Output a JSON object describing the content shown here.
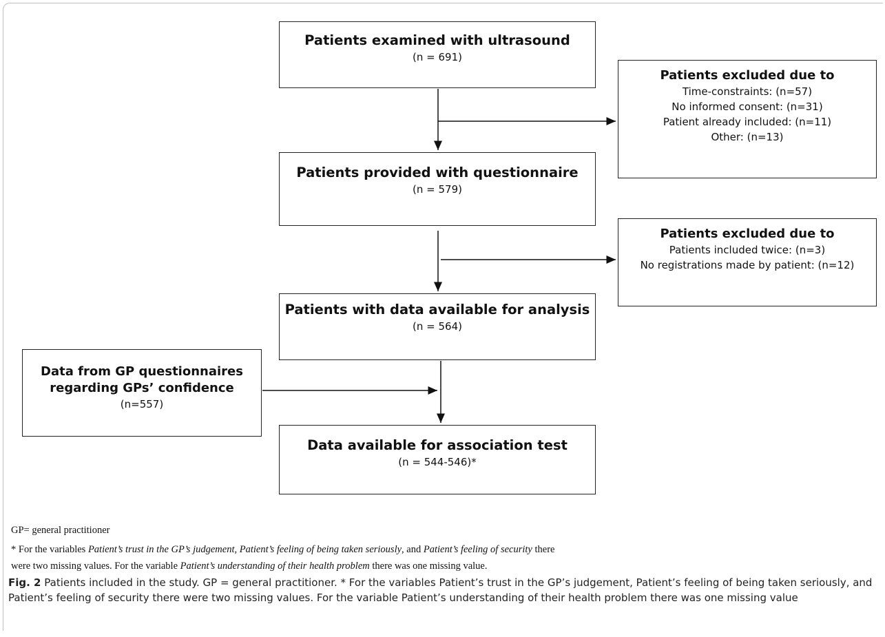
{
  "boxes": {
    "examined": {
      "title": "Patients examined with ultrasound",
      "count": "(n = 691)"
    },
    "provided": {
      "title": "Patients provided with questionnaire",
      "count": "(n = 579)"
    },
    "available": {
      "title": "Patients with data available for analysis",
      "count": "(n = 564)"
    },
    "association": {
      "title": "Data available for association test",
      "count": "(n = 544-546)*"
    },
    "excluded1": {
      "title": "Patients excluded due to",
      "lines": [
        "Time-constraints: (n=57)",
        "No informed consent: (n=31)",
        "Patient already included: (n=11)",
        "Other: (n=13)"
      ]
    },
    "excluded2": {
      "title": "Patients excluded due to",
      "lines": [
        "Patients included twice: (n=3)",
        "No registrations made by patient: (n=12)"
      ]
    },
    "gp": {
      "title_line1": "Data from GP questionnaires",
      "title_line2": "regarding GPs’ confidence",
      "count": "(n=557)"
    }
  },
  "footnotes": {
    "abbrev": "GP= general practitioner",
    "line1_a": "* For the variables ",
    "line1_b": "Patient’s trust in the GP’s judgement, Patient’s feeling of being taken seriously",
    "line1_c": ", and ",
    "line1_d": "Patient’s feeling of security",
    "line1_e": " there",
    "line2_a": "were two missing values. For the variable ",
    "line2_b": "Patient’s understanding of their health problem",
    "line2_c": " there was one missing value."
  },
  "caption": {
    "label": "Fig. 2",
    "text": "  Patients included in the study. GP = general practitioner. * For the variables Patient’s trust in the GP’s judgement, Patient’s feeling of being taken seriously, and Patient’s feeling of security there were two missing values. For the variable Patient’s understanding of their health problem there was one missing value"
  }
}
